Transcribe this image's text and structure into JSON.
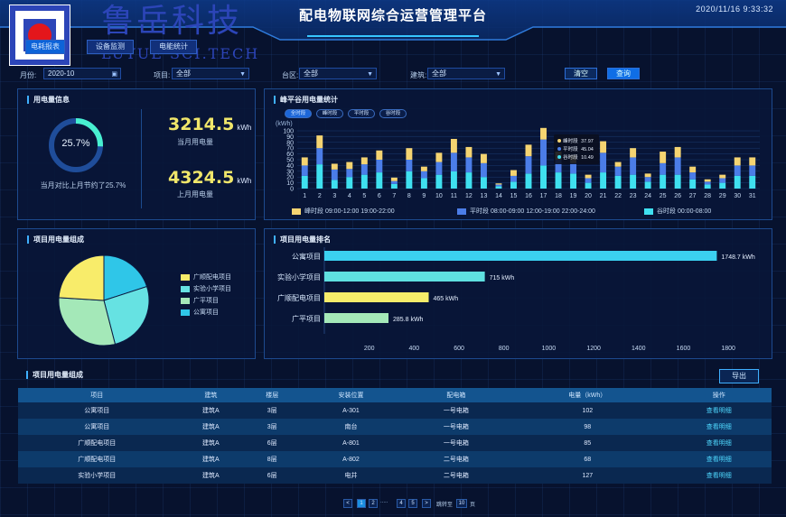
{
  "header": {
    "title": "配电物联网综合运营管理平台",
    "datetime": "2020/11/16  9:33:32",
    "brand_cn": "鲁岳科技",
    "brand_en": "LUYUE SCI.TECH"
  },
  "nav": [
    "电耗报表",
    "设备监测",
    "电能统计"
  ],
  "filters": {
    "month_label": "月份:",
    "month_value": "2020-10",
    "project_label": "项目:",
    "project_value": "全部",
    "zone_label": "台区:",
    "zone_value": "全部",
    "building_label": "建筑:",
    "building_value": "全部",
    "clear_label": "清空",
    "query_label": "查询"
  },
  "usage_panel": {
    "title": "用电量信息",
    "gauge_value": "25.7%",
    "gauge_percent": 25.7,
    "compare_text": "当月对比上月节约了25.7%",
    "current_value": "3214.5",
    "current_unit": "kWh",
    "current_label": "当月用电量",
    "last_value": "4324.5",
    "last_unit": "kWh",
    "last_label": "上月用电量"
  },
  "peak_panel": {
    "title": "峰平谷用电量统计",
    "tabs": [
      "全时段",
      "峰时段",
      "平时段",
      "谷时段"
    ],
    "active_tab": 0,
    "tooltip": [
      {
        "label": "峰时段",
        "value": "37.97",
        "color": "#f5d471"
      },
      {
        "label": "平时段",
        "value": "45.04",
        "color": "#4b7de8"
      },
      {
        "label": "谷时段",
        "value": "10.49",
        "color": "#3fe0f0"
      }
    ],
    "legend": [
      {
        "label": "峰时段",
        "text": "09:00-12:00  19:00-22:00",
        "color": "#f5d471"
      },
      {
        "label": "平时段",
        "text": "08:00-09:00  12:00-19:00  22:00-24:00",
        "color": "#4b7de8"
      },
      {
        "label": "谷时段",
        "text": "00:00-08:00",
        "color": "#3fe0f0"
      }
    ]
  },
  "pie_panel": {
    "title": "项目用电量组成",
    "legend": [
      "广顺配电项目",
      "实验小学项目",
      "广平项目",
      "公寓项目"
    ]
  },
  "rank_panel": {
    "title": "项目用电量排名"
  },
  "table_panel": {
    "title": "项目用电量组成",
    "export_label": "导出",
    "columns": [
      "项目",
      "建筑",
      "楼层",
      "安装位置",
      "配电箱",
      "电量（kWh）",
      "操作"
    ],
    "rows": [
      [
        "公寓项目",
        "建筑A",
        "3层",
        "A-301",
        "一号电箱",
        "102",
        "查看明细"
      ],
      [
        "公寓项目",
        "建筑A",
        "3层",
        "南台",
        "一号电箱",
        "98",
        "查看明细"
      ],
      [
        "广顺配电项目",
        "建筑A",
        "6层",
        "A-801",
        "一号电箱",
        "85",
        "查看明细"
      ],
      [
        "广顺配电项目",
        "建筑A",
        "8层",
        "A-802",
        "二号电箱",
        "68",
        "查看明细"
      ],
      [
        "实验小学项目",
        "建筑A",
        "6层",
        "电井",
        "二号电箱",
        "127",
        "查看明细"
      ]
    ]
  },
  "pagination": {
    "prev": "<",
    "pages": [
      "1",
      "2",
      "4",
      "5"
    ],
    "ellipsis": ".....",
    "next": ">",
    "goto_label": "跳转至",
    "goto_value": "10",
    "page_unit": "页"
  },
  "chart_data": [
    {
      "type": "bar",
      "stacked": true,
      "title": "",
      "ylabel": "(kWh)",
      "ylim": [
        0,
        100
      ],
      "yticks": [
        0,
        10,
        20,
        30,
        40,
        50,
        60,
        70,
        80,
        90,
        100
      ],
      "categories": [
        "1",
        "2",
        "3",
        "4",
        "5",
        "6",
        "7",
        "8",
        "9",
        "10",
        "11",
        "12",
        "13",
        "14",
        "15",
        "16",
        "17",
        "18",
        "19",
        "20",
        "21",
        "22",
        "23",
        "24",
        "25",
        "26",
        "27",
        "28",
        "29",
        "30",
        "31"
      ],
      "series": [
        {
          "name": "谷时段",
          "color": "#3fe0f0",
          "values": [
            22,
            42,
            15,
            20,
            24,
            28,
            8,
            30,
            18,
            24,
            30,
            28,
            20,
            4,
            12,
            26,
            40,
            28,
            26,
            10,
            28,
            22,
            24,
            12,
            24,
            24,
            16,
            7,
            10,
            22,
            22
          ]
        },
        {
          "name": "平时段",
          "color": "#4b7de8",
          "values": [
            18,
            28,
            18,
            14,
            18,
            22,
            5,
            20,
            12,
            22,
            32,
            26,
            24,
            3,
            10,
            30,
            45,
            22,
            18,
            8,
            34,
            16,
            30,
            8,
            20,
            30,
            12,
            5,
            8,
            18,
            18
          ]
        },
        {
          "name": "峰时段",
          "color": "#f5d471",
          "values": [
            14,
            22,
            10,
            12,
            12,
            16,
            6,
            20,
            8,
            16,
            24,
            18,
            16,
            2,
            10,
            20,
            20,
            14,
            14,
            6,
            20,
            8,
            16,
            6,
            20,
            18,
            10,
            4,
            6,
            14,
            14
          ]
        }
      ]
    },
    {
      "type": "pie",
      "labels": [
        "广顺配电项目",
        "实验小学项目",
        "广平项目",
        "公寓项目"
      ],
      "values": [
        24,
        26,
        30,
        20
      ],
      "colors": [
        "#f8ec6a",
        "#66e2e2",
        "#a4e8b8",
        "#2fc6e8"
      ]
    },
    {
      "type": "bar",
      "orientation": "horizontal",
      "categories": [
        "公寓项目",
        "实验小学项目",
        "广顺配电项目",
        "广平项目"
      ],
      "values": [
        1748.7,
        715,
        465,
        285.8
      ],
      "value_labels": [
        "1748.7 kWh",
        "715 kWh",
        "465 kWh",
        "285.8 kWh"
      ],
      "colors": [
        "#3bd0f0",
        "#5fe0e0",
        "#f6ec6a",
        "#a4e8b8"
      ],
      "xlim": [
        0,
        1900
      ],
      "xticks": [
        200,
        400,
        600,
        800,
        1000,
        1200,
        1400,
        1600,
        1800
      ]
    }
  ]
}
